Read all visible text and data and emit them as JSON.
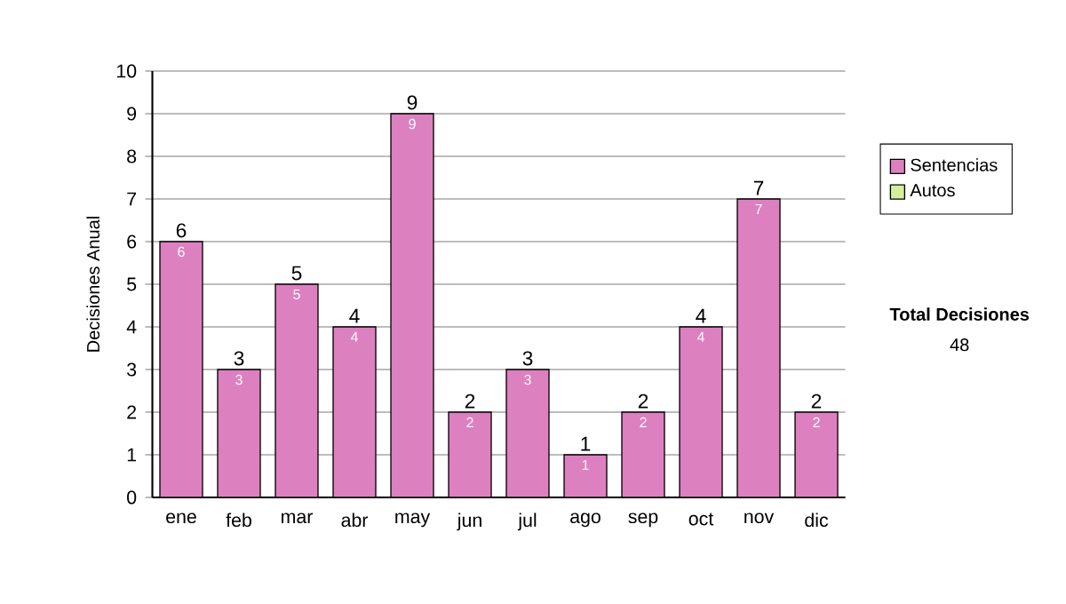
{
  "chart_data": {
    "type": "bar",
    "stacked": true,
    "ylabel": "Decisiones Anual",
    "categories": [
      "ene",
      "feb",
      "mar",
      "abr",
      "may",
      "jun",
      "jul",
      "ago",
      "sep",
      "oct",
      "nov",
      "dic"
    ],
    "series": [
      {
        "name": "Sentencias",
        "color": "#dd80c0",
        "values": [
          6,
          3,
          5,
          4,
          9,
          2,
          3,
          1,
          2,
          4,
          7,
          2
        ],
        "value_labels": [
          "6",
          "3",
          "5",
          "4",
          "9",
          "2",
          "3",
          "1",
          "2",
          "4",
          "7",
          "2"
        ]
      },
      {
        "name": "Autos",
        "color": "#d8eca0",
        "values": [
          0,
          0,
          0,
          0,
          0,
          0,
          0,
          0,
          0,
          0,
          0,
          0
        ]
      }
    ],
    "totals": [
      "6",
      "3",
      "5",
      "4",
      "9",
      "2",
      "3",
      "1",
      "2",
      "4",
      "7",
      "2"
    ],
    "ylim": [
      0,
      10
    ],
    "yticks": [
      0,
      1,
      2,
      3,
      4,
      5,
      6,
      7,
      8,
      9,
      10
    ],
    "grid": "y",
    "legend": "right",
    "annotations": [
      "Total Decisiones",
      "48"
    ]
  }
}
